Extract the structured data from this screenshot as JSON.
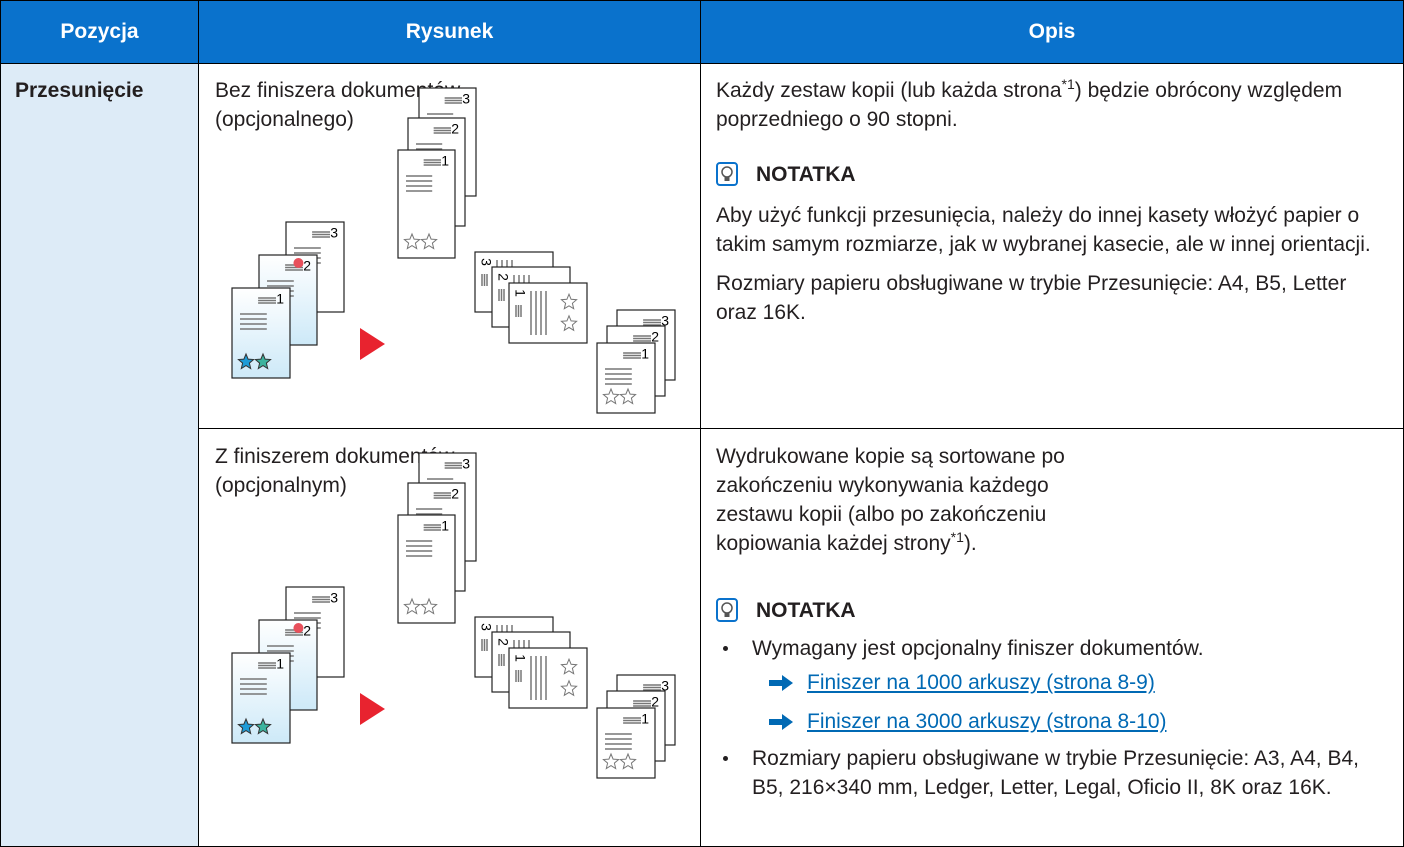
{
  "table": {
    "headers": [
      "Pozycja",
      "Rysunek",
      "Opis"
    ],
    "item": "Przesunięcie",
    "rows": [
      {
        "figure_caption": [
          "Bez finiszera dokumentów",
          "(opcjonalnego)"
        ],
        "intro": [
          "Każdy zestaw kopii (lub każda strona",
          "*1",
          ") będzie obrócony względem poprzedniego o 90 stopni."
        ],
        "note_title": "NOTATKA",
        "note_paragraphs": [
          "Aby użyć funkcji przesunięcia, należy do innej kasety włożyć papier o takim samym rozmiarze, jak w wybranej kasecie, ale w innej orientacji.",
          "Rozmiary papieru obsługiwane w trybie Przesunięcie: A4, B5, Letter oraz 16K."
        ]
      },
      {
        "figure_caption": [
          "Z finiszerem dokumentów",
          "(opcjonalnym)"
        ],
        "intro": [
          "Wydrukowane kopie są sortowane po zakończeniu wykonywania każdego zestawu kopii (albo po zakończeniu kopiowania każdej strony",
          "*1",
          ")."
        ],
        "note_title": "NOTATKA",
        "note_bullets": [
          {
            "text": "Wymagany jest opcjonalny finiszer dokumentów.",
            "links": [
              "Finiszer na 1000 arkuszy (strona 8-9)",
              "Finiszer na 3000 arkuszy (strona 8-10)"
            ]
          },
          {
            "text": "Rozmiary papieru obsługiwane w trybie Przesunięcie: A3, A4, B4, B5, 216×340 mm, Ledger, Letter, Legal, Oficio II, 8K oraz 16K."
          }
        ]
      }
    ]
  },
  "figure_labels": [
    "1",
    "2",
    "3"
  ]
}
